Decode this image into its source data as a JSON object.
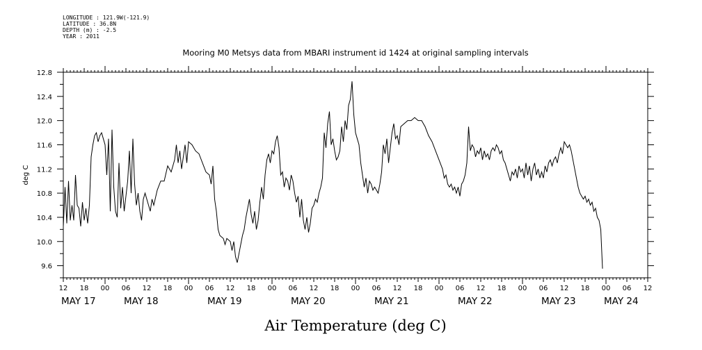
{
  "header": {
    "longitude": "LONGITUDE : 121.9W(-121.9)",
    "latitude": "LATITUDE : 36.8N",
    "depth": "DEPTH (m) : -2.5",
    "year": "YEAR : 2011"
  },
  "chart_data": {
    "type": "line",
    "title": "Mooring M0 Metsys data from MBARI instrument id 1424 at original sampling intervals",
    "ylabel": "deg C",
    "xlabel": "Air Temperature (deg C)",
    "ylim": [
      9.4,
      12.8
    ],
    "yticks": [
      "12.8",
      "12.4",
      "12.0",
      "11.6",
      "11.2",
      "10.8",
      "10.4",
      "10.0",
      "9.6"
    ],
    "xlim": [
      0,
      168
    ],
    "hour_ticks": [
      "12",
      "18",
      "00",
      "06",
      "12",
      "18",
      "00",
      "06",
      "12",
      "18",
      "00",
      "06",
      "12",
      "18",
      "00",
      "06",
      "12",
      "18",
      "00",
      "06",
      "12",
      "18",
      "00",
      "06",
      "12",
      "18",
      "00",
      "06",
      "12"
    ],
    "day_labels": [
      {
        "label": "MAY 17",
        "x": 0
      },
      {
        "label": "MAY 18",
        "x": 18
      },
      {
        "label": "MAY 19",
        "x": 42
      },
      {
        "label": "MAY 20",
        "x": 66
      },
      {
        "label": "MAY 21",
        "x": 90
      },
      {
        "label": "MAY 22",
        "x": 114
      },
      {
        "label": "MAY 23",
        "x": 138
      },
      {
        "label": "MAY 24",
        "x": 156
      }
    ],
    "series": [
      {
        "values": [
          [
            0,
            10.25
          ],
          [
            0.5,
            10.9
          ],
          [
            1,
            10.3
          ],
          [
            1.5,
            11.0
          ],
          [
            2,
            10.35
          ],
          [
            2.5,
            10.6
          ],
          [
            3,
            10.35
          ],
          [
            3.5,
            11.1
          ],
          [
            4,
            10.6
          ],
          [
            4.5,
            10.55
          ],
          [
            5,
            10.25
          ],
          [
            5.5,
            10.65
          ],
          [
            6,
            10.35
          ],
          [
            6.5,
            10.55
          ],
          [
            7,
            10.3
          ],
          [
            7.5,
            10.6
          ],
          [
            8,
            11.4
          ],
          [
            8.5,
            11.6
          ],
          [
            9,
            11.75
          ],
          [
            9.5,
            11.8
          ],
          [
            10,
            11.65
          ],
          [
            10.5,
            11.75
          ],
          [
            11,
            11.8
          ],
          [
            11.5,
            11.7
          ],
          [
            12,
            11.6
          ],
          [
            12.5,
            11.1
          ],
          [
            13,
            11.7
          ],
          [
            13.5,
            10.5
          ],
          [
            14,
            11.85
          ],
          [
            14.5,
            10.9
          ],
          [
            15,
            10.5
          ],
          [
            15.5,
            10.4
          ],
          [
            16,
            11.3
          ],
          [
            16.5,
            10.55
          ],
          [
            17,
            10.9
          ],
          [
            17.5,
            10.5
          ],
          [
            18,
            10.75
          ],
          [
            18.5,
            11.0
          ],
          [
            19,
            11.5
          ],
          [
            19.5,
            10.8
          ],
          [
            20,
            11.7
          ],
          [
            20.5,
            10.95
          ],
          [
            21,
            10.6
          ],
          [
            21.5,
            10.8
          ],
          [
            22,
            10.5
          ],
          [
            22.5,
            10.35
          ],
          [
            23,
            10.7
          ],
          [
            23.5,
            10.8
          ],
          [
            24,
            10.7
          ],
          [
            24.5,
            10.6
          ],
          [
            25,
            10.5
          ],
          [
            25.5,
            10.7
          ],
          [
            26,
            10.6
          ],
          [
            27,
            10.85
          ],
          [
            28,
            11.0
          ],
          [
            29,
            11.0
          ],
          [
            30,
            11.25
          ],
          [
            31,
            11.15
          ],
          [
            32,
            11.35
          ],
          [
            32.5,
            11.6
          ],
          [
            33,
            11.3
          ],
          [
            33.5,
            11.5
          ],
          [
            34,
            11.2
          ],
          [
            35,
            11.6
          ],
          [
            35.5,
            11.3
          ],
          [
            36,
            11.65
          ],
          [
            37,
            11.6
          ],
          [
            38,
            11.5
          ],
          [
            39,
            11.45
          ],
          [
            40,
            11.3
          ],
          [
            41,
            11.15
          ],
          [
            42,
            11.1
          ],
          [
            42.5,
            10.95
          ],
          [
            43,
            11.25
          ],
          [
            43.5,
            10.7
          ],
          [
            44,
            10.5
          ],
          [
            44.5,
            10.2
          ],
          [
            45,
            10.1
          ],
          [
            46,
            10.05
          ],
          [
            46.5,
            9.95
          ],
          [
            47,
            10.05
          ],
          [
            48,
            10.0
          ],
          [
            48.5,
            9.85
          ],
          [
            49,
            10.0
          ],
          [
            49.5,
            9.75
          ],
          [
            50,
            9.65
          ],
          [
            50.5,
            9.8
          ],
          [
            51,
            9.95
          ],
          [
            51.5,
            10.1
          ],
          [
            52,
            10.2
          ],
          [
            52.5,
            10.4
          ],
          [
            53,
            10.55
          ],
          [
            53.5,
            10.7
          ],
          [
            54,
            10.45
          ],
          [
            54.5,
            10.3
          ],
          [
            55,
            10.5
          ],
          [
            55.5,
            10.2
          ],
          [
            56,
            10.35
          ],
          [
            56.5,
            10.65
          ],
          [
            57,
            10.9
          ],
          [
            57.5,
            10.7
          ],
          [
            58,
            11.1
          ],
          [
            58.5,
            11.35
          ],
          [
            59,
            11.45
          ],
          [
            59.5,
            11.3
          ],
          [
            60,
            11.5
          ],
          [
            60.5,
            11.45
          ],
          [
            61,
            11.65
          ],
          [
            61.5,
            11.75
          ],
          [
            62,
            11.55
          ],
          [
            62.5,
            11.1
          ],
          [
            63,
            11.15
          ],
          [
            63.5,
            10.9
          ],
          [
            64,
            11.05
          ],
          [
            64.5,
            11.0
          ],
          [
            65,
            10.85
          ],
          [
            65.5,
            11.1
          ],
          [
            66,
            11.0
          ],
          [
            66.5,
            10.8
          ],
          [
            67,
            10.65
          ],
          [
            67.5,
            10.75
          ],
          [
            68,
            10.4
          ],
          [
            68.5,
            10.7
          ],
          [
            69,
            10.35
          ],
          [
            69.5,
            10.2
          ],
          [
            70,
            10.4
          ],
          [
            70.5,
            10.15
          ],
          [
            71,
            10.3
          ],
          [
            71.5,
            10.55
          ],
          [
            72,
            10.6
          ],
          [
            72.5,
            10.7
          ],
          [
            73,
            10.65
          ],
          [
            73.5,
            10.8
          ],
          [
            74,
            10.9
          ],
          [
            74.5,
            11.05
          ],
          [
            75,
            11.8
          ],
          [
            75.5,
            11.55
          ],
          [
            76,
            11.95
          ],
          [
            76.5,
            12.15
          ],
          [
            77,
            11.6
          ],
          [
            77.5,
            11.7
          ],
          [
            78,
            11.5
          ],
          [
            78.5,
            11.35
          ],
          [
            79,
            11.4
          ],
          [
            79.5,
            11.5
          ],
          [
            80,
            11.9
          ],
          [
            80.5,
            11.65
          ],
          [
            81,
            12.0
          ],
          [
            81.5,
            11.85
          ],
          [
            82,
            12.25
          ],
          [
            82.5,
            12.35
          ],
          [
            83,
            12.65
          ],
          [
            83.5,
            12.1
          ],
          [
            84,
            11.8
          ],
          [
            84.5,
            11.7
          ],
          [
            85,
            11.6
          ],
          [
            85.5,
            11.3
          ],
          [
            86,
            11.1
          ],
          [
            86.5,
            10.9
          ],
          [
            87,
            11.05
          ],
          [
            87.5,
            10.8
          ],
          [
            88,
            11.0
          ],
          [
            88.5,
            10.95
          ],
          [
            89,
            10.85
          ],
          [
            89.5,
            10.9
          ],
          [
            90,
            10.85
          ],
          [
            90.5,
            10.8
          ],
          [
            91,
            10.95
          ],
          [
            91.5,
            11.15
          ],
          [
            92,
            11.6
          ],
          [
            92.5,
            11.45
          ],
          [
            93,
            11.7
          ],
          [
            93.5,
            11.3
          ],
          [
            94,
            11.55
          ],
          [
            94.5,
            11.8
          ],
          [
            95,
            11.95
          ],
          [
            95.5,
            11.7
          ],
          [
            96,
            11.75
          ],
          [
            96.5,
            11.6
          ],
          [
            97,
            11.9
          ],
          [
            98,
            11.95
          ],
          [
            99,
            12.0
          ],
          [
            100,
            12.0
          ],
          [
            101,
            12.05
          ],
          [
            102,
            12.0
          ],
          [
            103,
            12.0
          ],
          [
            104,
            11.9
          ],
          [
            105,
            11.75
          ],
          [
            106,
            11.65
          ],
          [
            107,
            11.5
          ],
          [
            108,
            11.35
          ],
          [
            109,
            11.2
          ],
          [
            109.5,
            11.05
          ],
          [
            110,
            11.1
          ],
          [
            110.5,
            10.95
          ],
          [
            111,
            10.9
          ],
          [
            111.5,
            10.95
          ],
          [
            112,
            10.85
          ],
          [
            112.5,
            10.9
          ],
          [
            113,
            10.8
          ],
          [
            113.5,
            10.9
          ],
          [
            114,
            10.75
          ],
          [
            114.5,
            10.95
          ],
          [
            115,
            11.0
          ],
          [
            115.5,
            11.1
          ],
          [
            116,
            11.3
          ],
          [
            116.5,
            11.9
          ],
          [
            117,
            11.5
          ],
          [
            117.5,
            11.6
          ],
          [
            118,
            11.55
          ],
          [
            118.5,
            11.4
          ],
          [
            119,
            11.5
          ],
          [
            119.5,
            11.45
          ],
          [
            120,
            11.55
          ],
          [
            120.5,
            11.35
          ],
          [
            121,
            11.5
          ],
          [
            121.5,
            11.4
          ],
          [
            122,
            11.45
          ],
          [
            122.5,
            11.35
          ],
          [
            123,
            11.5
          ],
          [
            123.5,
            11.55
          ],
          [
            124,
            11.5
          ],
          [
            124.5,
            11.6
          ],
          [
            125,
            11.55
          ],
          [
            125.5,
            11.45
          ],
          [
            126,
            11.5
          ],
          [
            126.5,
            11.35
          ],
          [
            127,
            11.3
          ],
          [
            127.5,
            11.2
          ],
          [
            128,
            11.1
          ],
          [
            128.5,
            11.0
          ],
          [
            129,
            11.15
          ],
          [
            129.5,
            11.1
          ],
          [
            130,
            11.2
          ],
          [
            130.5,
            11.05
          ],
          [
            131,
            11.25
          ],
          [
            131.5,
            11.15
          ],
          [
            132,
            11.2
          ],
          [
            132.5,
            11.05
          ],
          [
            133,
            11.3
          ],
          [
            133.5,
            11.1
          ],
          [
            134,
            11.25
          ],
          [
            134.5,
            11.0
          ],
          [
            135,
            11.2
          ],
          [
            135.5,
            11.3
          ],
          [
            136,
            11.1
          ],
          [
            136.5,
            11.2
          ],
          [
            137,
            11.05
          ],
          [
            137.5,
            11.15
          ],
          [
            138,
            11.05
          ],
          [
            138.5,
            11.25
          ],
          [
            139,
            11.15
          ],
          [
            139.5,
            11.3
          ],
          [
            140,
            11.35
          ],
          [
            140.5,
            11.25
          ],
          [
            141,
            11.35
          ],
          [
            141.5,
            11.4
          ],
          [
            142,
            11.3
          ],
          [
            142.5,
            11.45
          ],
          [
            143,
            11.55
          ],
          [
            143.5,
            11.45
          ],
          [
            144,
            11.65
          ],
          [
            144.5,
            11.6
          ],
          [
            145,
            11.55
          ],
          [
            145.5,
            11.6
          ],
          [
            146,
            11.5
          ],
          [
            146.5,
            11.35
          ],
          [
            147,
            11.2
          ],
          [
            147.5,
            11.05
          ],
          [
            148,
            10.9
          ],
          [
            148.5,
            10.8
          ],
          [
            149,
            10.75
          ],
          [
            149.5,
            10.7
          ],
          [
            150,
            10.75
          ],
          [
            150.5,
            10.65
          ],
          [
            151,
            10.7
          ],
          [
            151.5,
            10.6
          ],
          [
            152,
            10.65
          ],
          [
            152.5,
            10.5
          ],
          [
            153,
            10.55
          ],
          [
            153.5,
            10.4
          ],
          [
            154,
            10.35
          ],
          [
            154.5,
            10.2
          ],
          [
            155,
            9.55
          ]
        ]
      }
    ]
  }
}
